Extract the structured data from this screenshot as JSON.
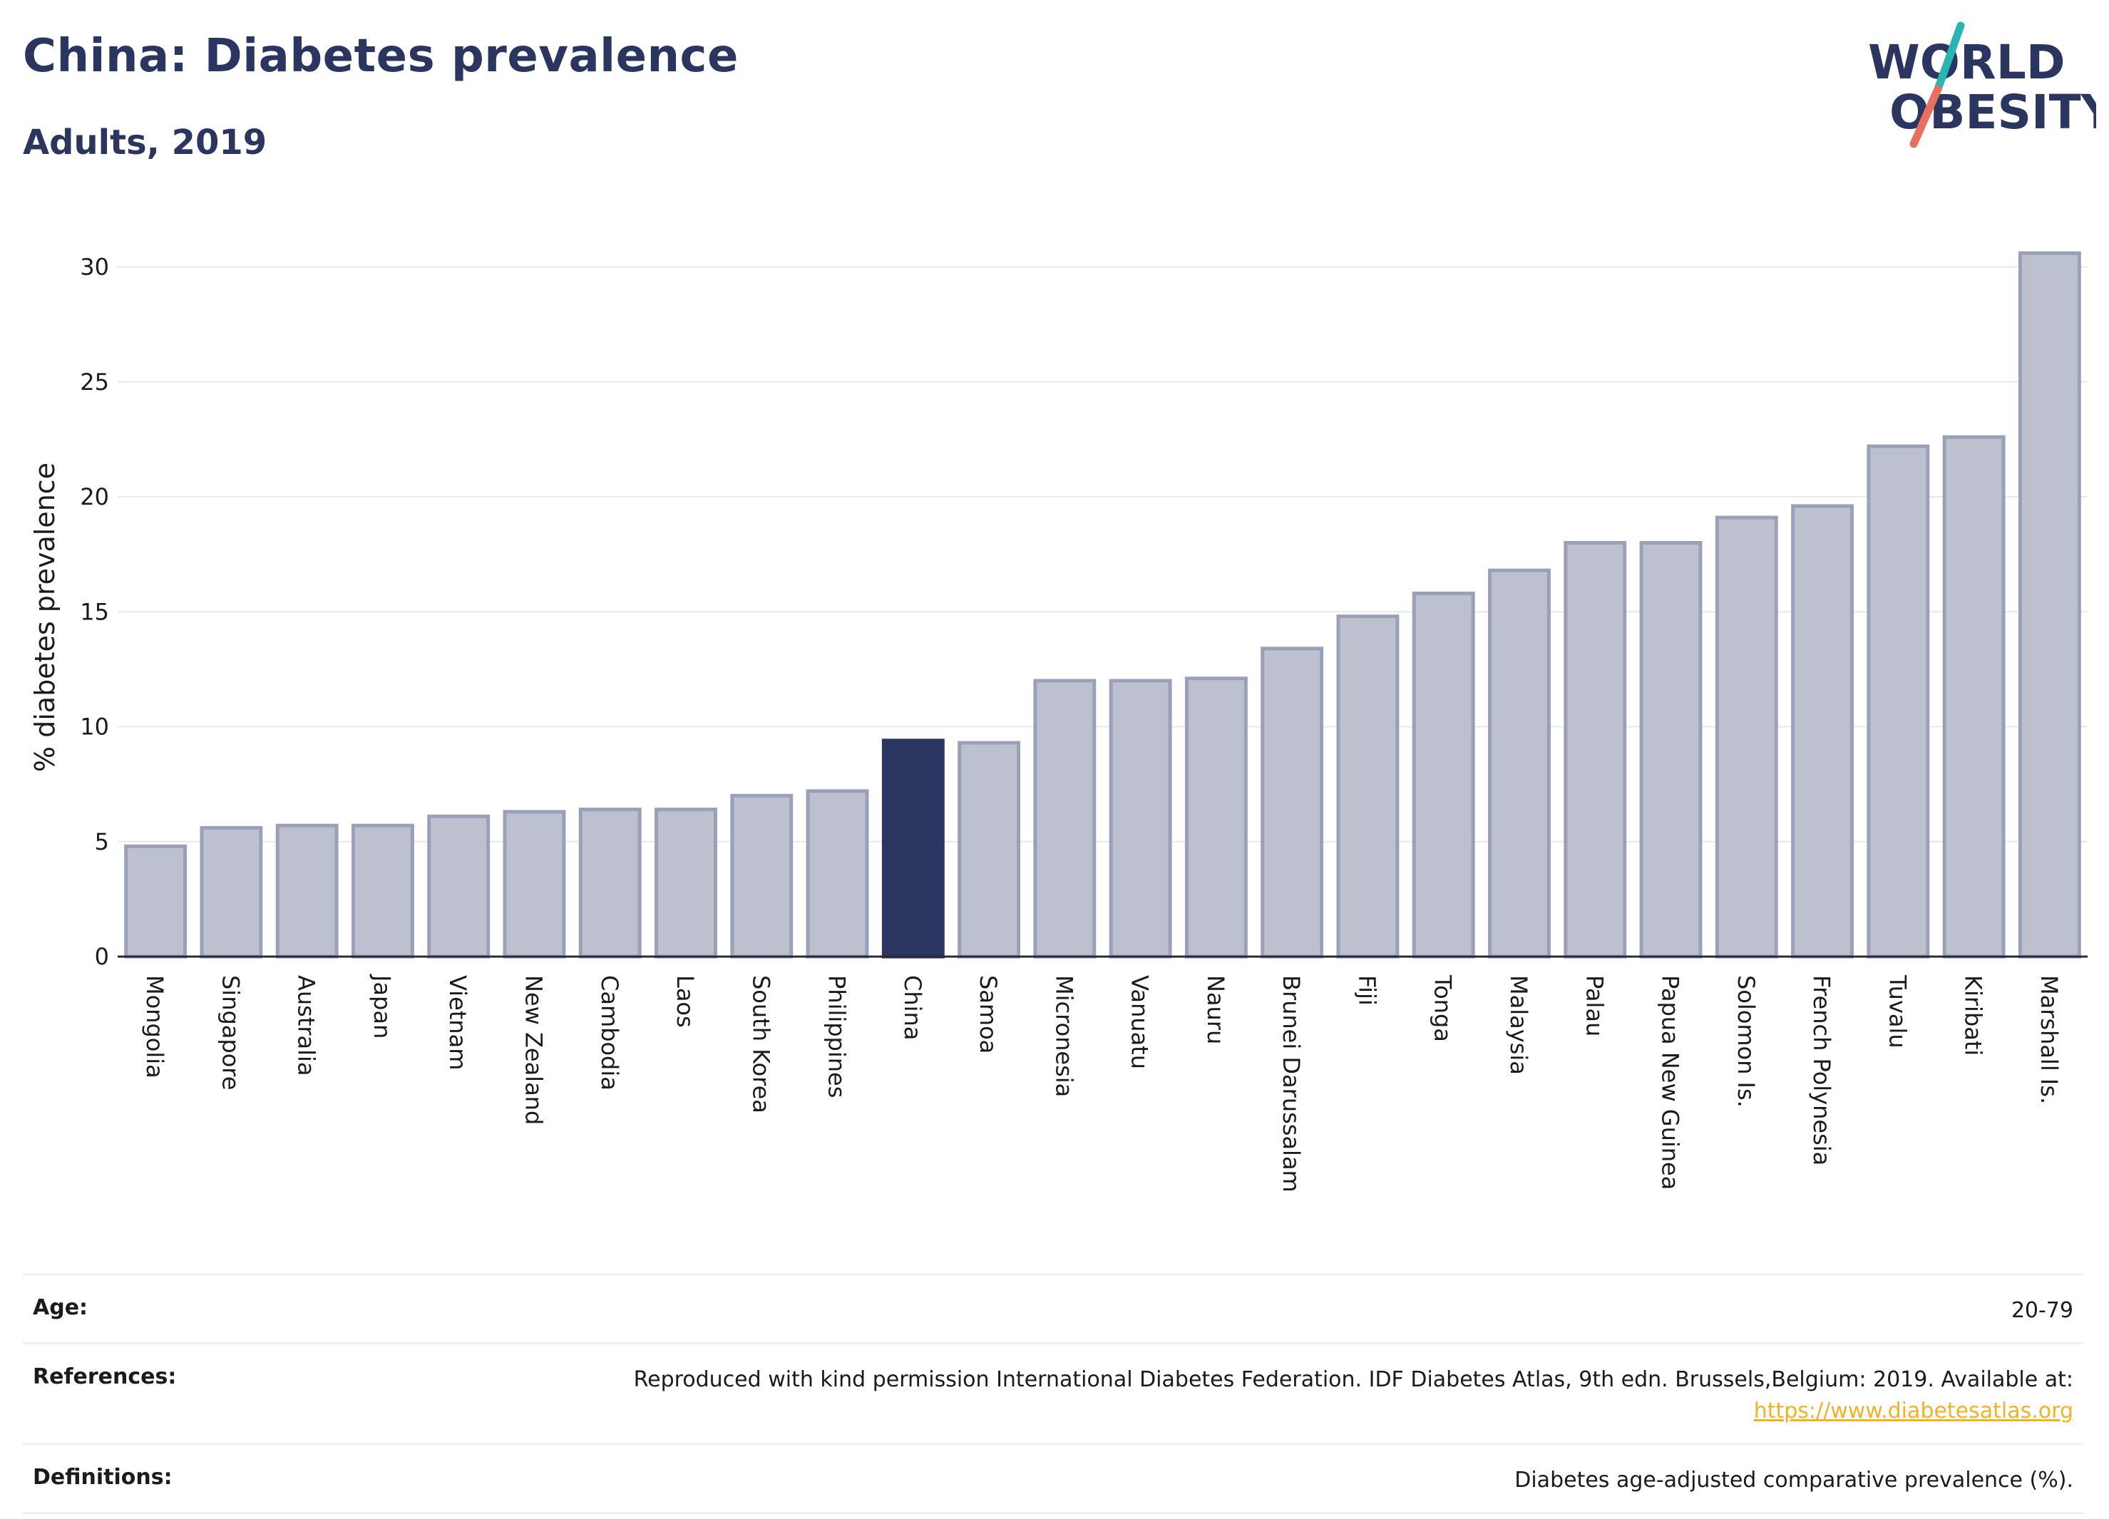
{
  "header": {
    "title": "China: Diabetes prevalence",
    "subtitle": "Adults, 2019"
  },
  "logo": {
    "line1": "WORLD",
    "line2": "OBESITY"
  },
  "colors": {
    "brand_navy": "#2a3560",
    "bar_default": "#bdc1cf",
    "bar_default_border": "#9aa0b8",
    "bar_highlight": "#2a3560",
    "logo_teal": "#2bb5b0",
    "logo_coral": "#e8705f",
    "link": "#f2b225"
  },
  "chart_data": {
    "type": "bar",
    "ylabel": "% diabetes prevalence",
    "xlabel": "",
    "ylim": [
      0,
      32
    ],
    "yticks": [
      0,
      5,
      10,
      15,
      20,
      25,
      30
    ],
    "grid": true,
    "highlight": "China",
    "categories": [
      "Mongolia",
      "Singapore",
      "Australia",
      "Japan",
      "Vietnam",
      "New Zealand",
      "Cambodia",
      "Laos",
      "South Korea",
      "Philippines",
      "China",
      "Samoa",
      "Micronesia",
      "Vanuatu",
      "Nauru",
      "Brunei Darussalam",
      "Fiji",
      "Tonga",
      "Malaysia",
      "Palau",
      "Papua New Guinea",
      "Solomon Is.",
      "French Polynesia",
      "Tuvalu",
      "Kiribati",
      "Marshall Is."
    ],
    "values": [
      4.8,
      5.6,
      5.7,
      5.7,
      6.1,
      6.3,
      6.4,
      6.4,
      7.0,
      7.2,
      9.4,
      9.3,
      12.0,
      12.0,
      12.1,
      13.4,
      14.8,
      15.8,
      16.8,
      18.0,
      18.0,
      19.1,
      19.6,
      22.2,
      22.6,
      30.6
    ]
  },
  "info": {
    "rows": [
      {
        "key": "Age:",
        "value": "20-79"
      },
      {
        "key": "References:",
        "value": "Reproduced with kind permission International Diabetes Federation. IDF Diabetes Atlas, 9th edn. Brussels,Belgium: 2019. Available at:",
        "link": "https://www.diabetesatlas.org"
      },
      {
        "key": "Definitions:",
        "value": "Diabetes age-adjusted comparative prevalence (%)."
      }
    ]
  }
}
